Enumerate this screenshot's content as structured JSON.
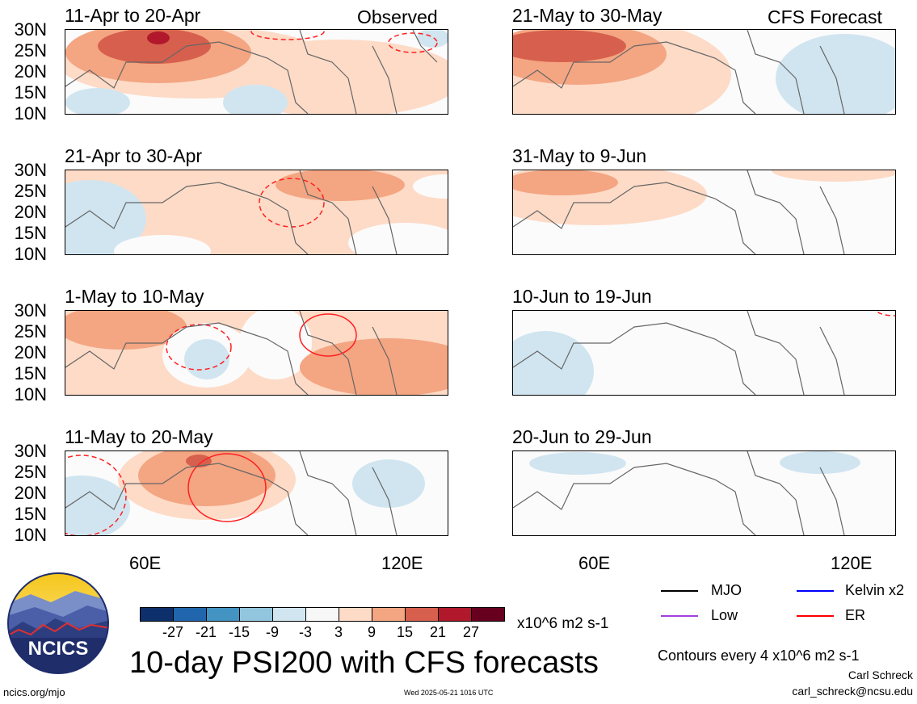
{
  "panels_observed": [
    {
      "label": "11-Apr to 20-Apr"
    },
    {
      "label": "21-Apr to 30-Apr"
    },
    {
      "label": "1-May to 10-May"
    },
    {
      "label": "11-May to 20-May"
    }
  ],
  "panels_forecast": [
    {
      "label": "21-May to 30-May"
    },
    {
      "label": "31-May to 9-Jun"
    },
    {
      "label": "10-Jun to 19-Jun"
    },
    {
      "label": "20-Jun to 29-Jun"
    }
  ],
  "header": {
    "observed": "Observed",
    "forecast": "CFS Forecast"
  },
  "lat_labels": [
    "30N",
    "25N",
    "20N",
    "15N",
    "10N"
  ],
  "lon_labels": [
    "60E",
    "120E"
  ],
  "colorbar": {
    "labels": [
      "-27",
      "-21",
      "-15",
      "-9",
      "-3",
      "3",
      "9",
      "15",
      "21",
      "27"
    ],
    "colors": [
      "#0d2f6b",
      "#2166ac",
      "#4393c3",
      "#92c5de",
      "#d1e5f0",
      "#f7f7f7",
      "#fddbc7",
      "#f4a582",
      "#d6604d",
      "#b2182b",
      "#67001f"
    ],
    "units": "x10^6 m2 s-1"
  },
  "legend": {
    "mjo": "MJO",
    "kelvin": "Kelvin x2",
    "low": "Low",
    "er": "ER",
    "mjo_color": "#000000",
    "kelvin_color": "#0000ff",
    "low_color": "#a040e0",
    "er_color": "#ff0000"
  },
  "title": "10-day PSI200 with CFS forecasts",
  "contours_note": "Contours every 4 x10^6 m2 s-1",
  "author": "Carl Schreck",
  "email": "carl_schreck@ncsu.edu",
  "site": "ncics.org/mjo",
  "timestamp": "Wed 2025-05-21 1016 UTC",
  "logo_text": "NCICS"
}
